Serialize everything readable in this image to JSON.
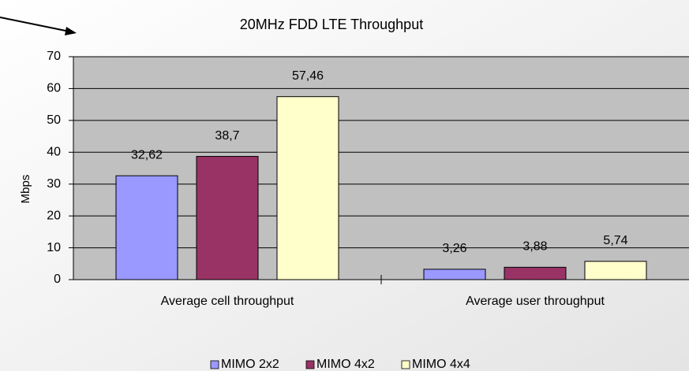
{
  "chart_data": {
    "type": "bar",
    "title": "20MHz FDD LTE Throughput",
    "y_label": "Mbps",
    "categories": [
      "Average cell throughput",
      "Average user throughput"
    ],
    "series": [
      {
        "name": "MIMO 2x2",
        "color": "#9999ff",
        "values": [
          32.62,
          3.26
        ],
        "value_labels": [
          "32,62",
          "3,26"
        ]
      },
      {
        "name": "MIMO 4x2",
        "color": "#993366",
        "values": [
          38.7,
          3.88
        ],
        "value_labels": [
          "38,7",
          "3,88"
        ]
      },
      {
        "name": "MIMO 4x4",
        "color": "#ffffcc",
        "values": [
          57.46,
          5.74
        ],
        "value_labels": [
          "57,46",
          "5,74"
        ]
      }
    ],
    "ylim": [
      0,
      70
    ],
    "yticks": [
      0,
      10,
      20,
      30,
      40,
      50,
      60,
      70
    ],
    "grid": true,
    "legend": "bottom"
  }
}
